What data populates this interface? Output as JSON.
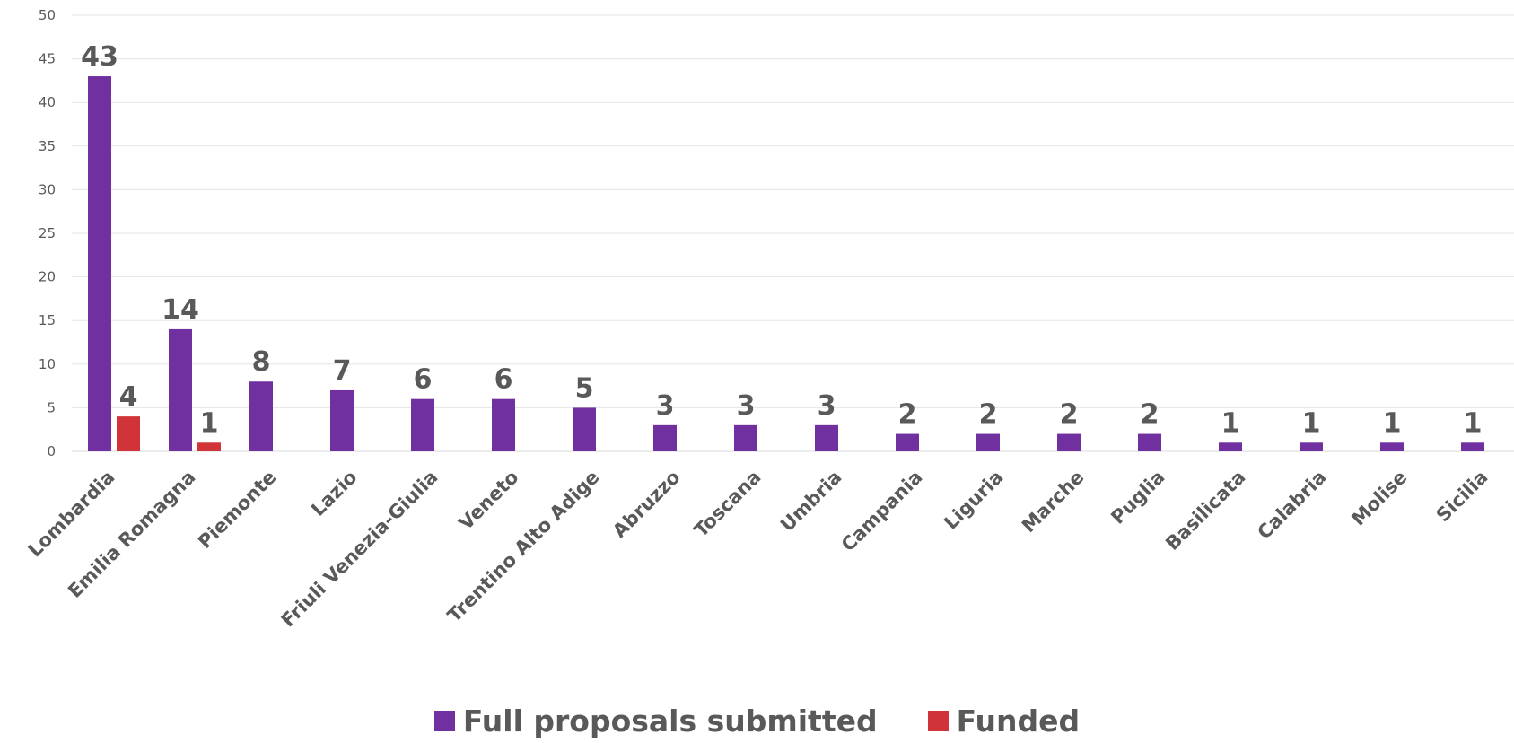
{
  "chart_data": {
    "type": "bar",
    "categories": [
      "Lombardia",
      "Emilia Romagna",
      "Piemonte",
      "Lazio",
      "Friuli Venezia-Giulia",
      "Veneto",
      "Trentino Alto Adige",
      "Abruzzo",
      "Toscana",
      "Umbria",
      "Campania",
      "Liguria",
      "Marche",
      "Puglia",
      "Basilicata",
      "Calabria",
      "Molise",
      "Sicilia"
    ],
    "series": [
      {
        "name": "Full proposals submitted",
        "color": "#7030a0",
        "values": [
          43,
          14,
          8,
          7,
          6,
          6,
          5,
          3,
          3,
          3,
          2,
          2,
          2,
          2,
          1,
          1,
          1,
          1
        ]
      },
      {
        "name": "Funded",
        "color": "#d13438",
        "values": [
          4,
          1,
          null,
          null,
          null,
          null,
          null,
          null,
          null,
          null,
          null,
          null,
          null,
          null,
          null,
          null,
          null,
          null
        ]
      }
    ],
    "ylim": [
      0,
      50
    ],
    "yticks": [
      0,
      5,
      10,
      15,
      20,
      25,
      30,
      35,
      40,
      45,
      50
    ],
    "grid": true,
    "data_labels": true,
    "legend_position": "bottom"
  }
}
